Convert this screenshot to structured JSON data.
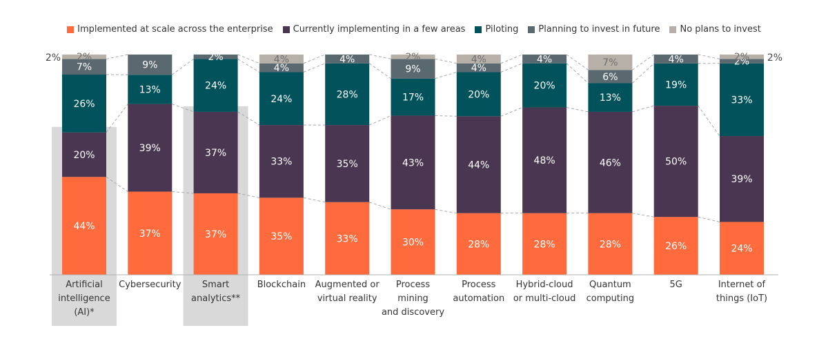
{
  "chart_data": {
    "type": "bar",
    "stacked": true,
    "ylim": [
      0,
      100
    ],
    "grid": false,
    "legend_position": "top",
    "categories": [
      "Artificial intelligence (AI)*",
      "Cybersecurity",
      "Smart analytics**",
      "Blockchain",
      "Augmented or virtual reality",
      "Process mining and discovery",
      "Process automation",
      "Hybrid-cloud or multi-cloud",
      "Quantum computing",
      "5G",
      "Internet of things (IoT)"
    ],
    "category_lines": [
      [
        "Artificial",
        "intelligence",
        "(AI)*"
      ],
      [
        "Cybersecurity"
      ],
      [
        "Smart",
        "analytics**"
      ],
      [
        "Blockchain"
      ],
      [
        "Augmented or",
        "virtual reality"
      ],
      [
        "Process",
        "mining",
        "and discovery"
      ],
      [
        "Process",
        "automation"
      ],
      [
        "Hybrid-cloud",
        "or multi-cloud"
      ],
      [
        "Quantum",
        "computing"
      ],
      [
        "5G"
      ],
      [
        "Internet of",
        "things (IoT)"
      ]
    ],
    "highlighted": [
      "Artificial intelligence (AI)*",
      "Smart analytics**"
    ],
    "series": [
      {
        "name": "Implemented at scale across the enterprise",
        "color": "#ff6b3d",
        "values": [
          44,
          37,
          37,
          35,
          33,
          30,
          28,
          28,
          28,
          26,
          24
        ]
      },
      {
        "name": "Currently implementing in a few areas",
        "color": "#4a3650",
        "values": [
          20,
          39,
          37,
          33,
          35,
          43,
          44,
          48,
          46,
          50,
          39
        ]
      },
      {
        "name": "Piloting",
        "color": "#01525a",
        "values": [
          26,
          13,
          24,
          24,
          28,
          17,
          20,
          20,
          13,
          19,
          33
        ]
      },
      {
        "name": "Planning to invest in future",
        "color": "#5a6970",
        "values": [
          7,
          9,
          2,
          4,
          4,
          9,
          4,
          4,
          6,
          4,
          2
        ]
      },
      {
        "name": "No plans to invest",
        "color": "#b7b0a8",
        "values": [
          2,
          0,
          0,
          4,
          0,
          2,
          4,
          0,
          7,
          0,
          2
        ]
      }
    ],
    "data_labels": [
      [
        "44%",
        "37%",
        "37%",
        "35%",
        "33%",
        "30%",
        "28%",
        "28%",
        "28%",
        "26%",
        "24%"
      ],
      [
        "20%",
        "39%",
        "37%",
        "33%",
        "35%",
        "43%",
        "44%",
        "48%",
        "46%",
        "50%",
        "39%"
      ],
      [
        "26%",
        "13%",
        "24%",
        "24%",
        "28%",
        "17%",
        "20%",
        "20%",
        "13%",
        "19%",
        "33%"
      ],
      [
        "7%",
        "9%",
        "2%",
        "4%",
        "4%",
        "9%",
        "4%",
        "4%",
        "6%",
        "4%",
        "2%"
      ],
      [
        "2%",
        "",
        "",
        "4%",
        "",
        "2%",
        "4%",
        "",
        "7%",
        "",
        "2%"
      ]
    ],
    "outer_labels": {
      "left": "2%",
      "right": "2%"
    }
  }
}
